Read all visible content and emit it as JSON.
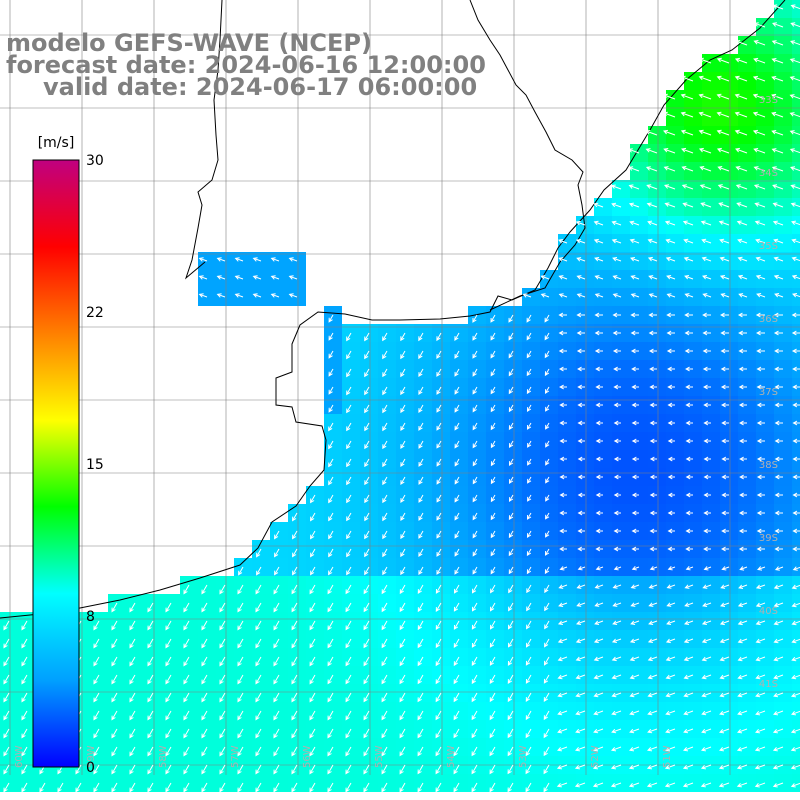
{
  "map": {
    "title_lines": [
      "modelo GEFS-WAVE (NCEP)",
      "forecast date: 2024-06-16 12:00:00",
      "valid date: 2024-06-17 06:00:00"
    ],
    "colorbar": {
      "unit": "[m/s]",
      "tick_labels": [
        "30",
        "22",
        "15",
        "8",
        "0"
      ],
      "ticks": [
        30,
        22,
        15,
        8,
        0
      ],
      "range": [
        0,
        30
      ],
      "colors": [
        "#0000ff",
        "#00a0ff",
        "#00ffff",
        "#00ff00",
        "#ffff00",
        "#ff8000",
        "#ff0000",
        "#c00080"
      ]
    },
    "lat_labels": [
      "33S",
      "34S",
      "35S",
      "36S",
      "37S",
      "38S",
      "39S",
      "40S",
      "41S"
    ],
    "lon_labels": [
      "60W",
      "59W",
      "58W",
      "57W",
      "56W",
      "55W",
      "54W",
      "53W",
      "52W",
      "51W"
    ],
    "colors": {
      "land": "#ffffff",
      "coast": "#000000",
      "grid": "#808080",
      "arrow": "#ffffff"
    }
  }
}
